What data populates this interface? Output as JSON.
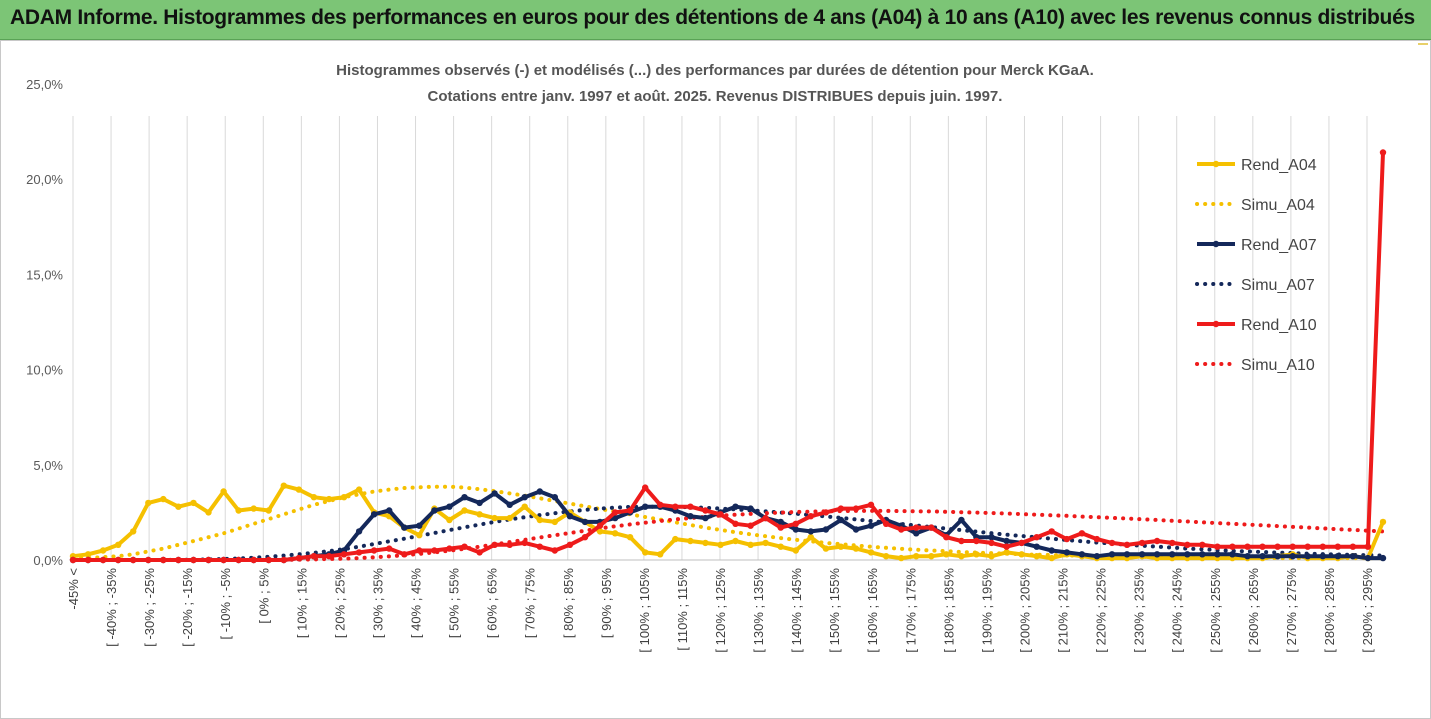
{
  "header": {
    "title": "ADAM Informe. Histogrammes des performances en euros pour des détentions de 4 ans (A04) à 10 ans (A10) avec les revenus connus distribués",
    "background": "#7cc576"
  },
  "chart_data": {
    "type": "line",
    "title_line1": "Histogrammes observés (-) et modélisés (...) des performances par durées de détention pour Merck KGaA.",
    "title_line2": "Cotations entre janv. 1997 et août. 2025. Revenus DISTRIBUES depuis juin. 1997.",
    "ylim": [
      0,
      25
    ],
    "yticks": [
      "0,0%",
      "5,0%",
      "10,0%",
      "15,0%",
      "20,0%",
      "25,0%"
    ],
    "grid": "vertical",
    "legend_position": "right",
    "x_labels": [
      "-45% <",
      "[ -40% ; -35%",
      "[ -30% ; -25%",
      "[ -20% ; -15%",
      "[ -10% ; -5%",
      "[ 0% ; 5%",
      "[ 10% ; 15%",
      "[ 20% ; 25%",
      "[ 30% ; 35%",
      "[ 40% ; 45%",
      "[ 50% ; 55%",
      "[ 60% ; 65%",
      "[ 70% ; 75%",
      "[ 80% ; 85%",
      "[ 90% ; 95%",
      "[ 100% ; 105%",
      "[ 110% ; 115%",
      "[ 120% ; 125%",
      "[ 130% ; 135%",
      "[ 140% ; 145%",
      "[ 150% ; 155%",
      "[ 160% ; 165%",
      "[ 170% ; 175%",
      "[ 180% ; 185%",
      "[ 190% ; 195%",
      "[ 200% ; 205%",
      "[ 210% ; 215%",
      "[ 220% ; 225%",
      "[ 230% ; 235%",
      "[ 240% ; 245%",
      "[ 250% ; 255%",
      "[ 260% ; 265%",
      "[ 270% ; 275%",
      "[ 280% ; 285%",
      "[ 290% ; 295%"
    ],
    "series": [
      {
        "name": "Rend_A04",
        "color": "#f5c000",
        "style": "solid",
        "markers": true,
        "values": [
          0.2,
          0.3,
          0.5,
          0.8,
          1.5,
          3.0,
          3.2,
          2.8,
          3.0,
          2.5,
          3.6,
          2.6,
          2.7,
          2.6,
          3.9,
          3.7,
          3.3,
          3.2,
          3.3,
          3.7,
          2.5,
          2.3,
          1.7,
          1.3,
          2.7,
          2.1,
          2.6,
          2.4,
          2.2,
          2.2,
          2.8,
          2.1,
          2.0,
          2.5,
          2.0,
          1.5,
          1.4,
          1.2,
          0.4,
          0.3,
          1.1,
          1.0,
          0.9,
          0.8,
          1.0,
          0.8,
          0.9,
          0.7,
          0.5,
          1.2,
          0.6,
          0.7,
          0.6,
          0.4,
          0.2,
          0.1,
          0.2,
          0.2,
          0.3,
          0.2,
          0.3,
          0.2,
          0.4,
          0.3,
          0.2,
          0.1,
          0.3,
          0.2,
          0.1,
          0.1,
          0.1,
          0.2,
          0.1,
          0.1,
          0.1,
          0.1,
          0.1,
          0.1,
          0.1,
          0.1,
          0.2,
          0.3,
          0.1,
          0.1,
          0.1,
          0.2,
          0.1,
          2.0
        ]
      },
      {
        "name": "Simu_A04",
        "color": "#f5c000",
        "style": "dotted",
        "markers": false,
        "values": [
          0.1,
          0.1,
          0.15,
          0.2,
          0.3,
          0.45,
          0.6,
          0.8,
          1.0,
          1.2,
          1.4,
          1.65,
          1.9,
          2.15,
          2.4,
          2.65,
          2.9,
          3.1,
          3.3,
          3.45,
          3.6,
          3.7,
          3.78,
          3.82,
          3.85,
          3.85,
          3.8,
          3.72,
          3.62,
          3.5,
          3.38,
          3.24,
          3.1,
          2.96,
          2.82,
          2.68,
          2.54,
          2.4,
          2.26,
          2.12,
          1.98,
          1.84,
          1.7,
          1.58,
          1.46,
          1.35,
          1.25,
          1.15,
          1.06,
          0.98,
          0.9,
          0.83,
          0.76,
          0.7,
          0.64,
          0.59,
          0.54,
          0.5,
          0.46,
          0.42,
          0.39,
          0.36,
          0.33,
          0.3,
          0.28,
          0.26,
          0.24,
          0.22,
          0.2,
          0.19,
          0.18,
          0.17,
          0.16,
          0.15,
          0.14,
          0.13,
          0.12,
          0.12,
          0.11,
          0.11,
          0.1,
          0.1,
          0.1,
          0.1,
          0.1,
          0.1,
          0.1,
          0.1
        ]
      },
      {
        "name": "Rend_A07",
        "color": "#14285a",
        "style": "solid",
        "markers": true,
        "values": [
          0,
          0,
          0,
          0,
          0,
          0,
          0,
          0,
          0,
          0,
          0,
          0,
          0,
          0,
          0,
          0.1,
          0.2,
          0.3,
          0.5,
          1.5,
          2.4,
          2.6,
          1.7,
          1.8,
          2.6,
          2.8,
          3.3,
          3.0,
          3.5,
          2.9,
          3.3,
          3.6,
          3.3,
          2.3,
          2.0,
          2.0,
          2.2,
          2.5,
          2.8,
          2.8,
          2.6,
          2.3,
          2.2,
          2.5,
          2.8,
          2.7,
          2.2,
          2.0,
          1.6,
          1.5,
          1.6,
          2.1,
          1.6,
          1.8,
          2.1,
          1.8,
          1.4,
          1.7,
          1.3,
          2.1,
          1.2,
          1.2,
          1.0,
          0.9,
          0.7,
          0.5,
          0.4,
          0.3,
          0.2,
          0.3,
          0.3,
          0.3,
          0.3,
          0.3,
          0.3,
          0.3,
          0.3,
          0.3,
          0.2,
          0.2,
          0.2,
          0.2,
          0.2,
          0.2,
          0.2,
          0.2,
          0.1,
          0.1
        ]
      },
      {
        "name": "Simu_A07",
        "color": "#14285a",
        "style": "dotted",
        "markers": false,
        "values": [
          0,
          0,
          0,
          0,
          0,
          0,
          0,
          0.01,
          0.02,
          0.03,
          0.05,
          0.08,
          0.12,
          0.17,
          0.23,
          0.3,
          0.38,
          0.47,
          0.57,
          0.7,
          0.84,
          0.98,
          1.12,
          1.27,
          1.42,
          1.57,
          1.72,
          1.86,
          2.0,
          2.13,
          2.25,
          2.36,
          2.46,
          2.55,
          2.63,
          2.7,
          2.75,
          2.79,
          2.8,
          2.8,
          2.79,
          2.77,
          2.74,
          2.7,
          2.66,
          2.61,
          2.55,
          2.49,
          2.43,
          2.36,
          2.29,
          2.21,
          2.13,
          2.05,
          1.97,
          1.89,
          1.81,
          1.73,
          1.65,
          1.57,
          1.49,
          1.41,
          1.33,
          1.26,
          1.19,
          1.12,
          1.05,
          0.98,
          0.92,
          0.86,
          0.8,
          0.75,
          0.7,
          0.65,
          0.6,
          0.56,
          0.52,
          0.48,
          0.45,
          0.42,
          0.39,
          0.36,
          0.33,
          0.31,
          0.29,
          0.27,
          0.25,
          0.23
        ]
      },
      {
        "name": "Rend_A10",
        "color": "#ee1b1b",
        "style": "solid",
        "markers": true,
        "values": [
          0,
          0,
          0,
          0,
          0,
          0,
          0,
          0,
          0,
          0,
          0,
          0,
          0,
          0,
          0,
          0.1,
          0.2,
          0.2,
          0.3,
          0.4,
          0.5,
          0.6,
          0.3,
          0.5,
          0.5,
          0.6,
          0.7,
          0.4,
          0.8,
          0.8,
          0.9,
          0.7,
          0.5,
          0.8,
          1.2,
          1.8,
          2.5,
          2.6,
          3.8,
          2.9,
          2.8,
          2.8,
          2.6,
          2.4,
          1.9,
          1.8,
          2.2,
          1.7,
          1.9,
          2.3,
          2.5,
          2.7,
          2.7,
          2.9,
          1.9,
          1.6,
          1.7,
          1.7,
          1.2,
          1.0,
          1.0,
          0.9,
          0.7,
          0.9,
          1.2,
          1.5,
          1.1,
          1.4,
          1.1,
          0.9,
          0.8,
          0.9,
          1.0,
          0.9,
          0.8,
          0.8,
          0.7,
          0.7,
          0.7,
          0.7,
          0.7,
          0.7,
          0.7,
          0.7,
          0.7,
          0.7,
          0.7,
          21.4
        ]
      },
      {
        "name": "Simu_A10",
        "color": "#ee1b1b",
        "style": "dotted",
        "markers": false,
        "values": [
          0,
          0,
          0,
          0,
          0,
          0,
          0,
          0,
          0,
          0,
          0,
          0,
          0,
          0,
          0.01,
          0.02,
          0.03,
          0.05,
          0.07,
          0.1,
          0.14,
          0.19,
          0.25,
          0.32,
          0.4,
          0.49,
          0.59,
          0.7,
          0.82,
          0.94,
          1.06,
          1.18,
          1.3,
          1.42,
          1.54,
          1.66,
          1.77,
          1.87,
          1.96,
          2.05,
          2.13,
          2.2,
          2.27,
          2.33,
          2.38,
          2.42,
          2.46,
          2.49,
          2.52,
          2.54,
          2.56,
          2.57,
          2.58,
          2.58,
          2.58,
          2.57,
          2.56,
          2.55,
          2.53,
          2.51,
          2.49,
          2.47,
          2.44,
          2.41,
          2.38,
          2.35,
          2.32,
          2.28,
          2.25,
          2.21,
          2.18,
          2.14,
          2.1,
          2.06,
          2.02,
          1.98,
          1.94,
          1.9,
          1.86,
          1.82,
          1.78,
          1.74,
          1.7,
          1.66,
          1.62,
          1.58,
          1.54,
          1.5
        ]
      }
    ]
  }
}
